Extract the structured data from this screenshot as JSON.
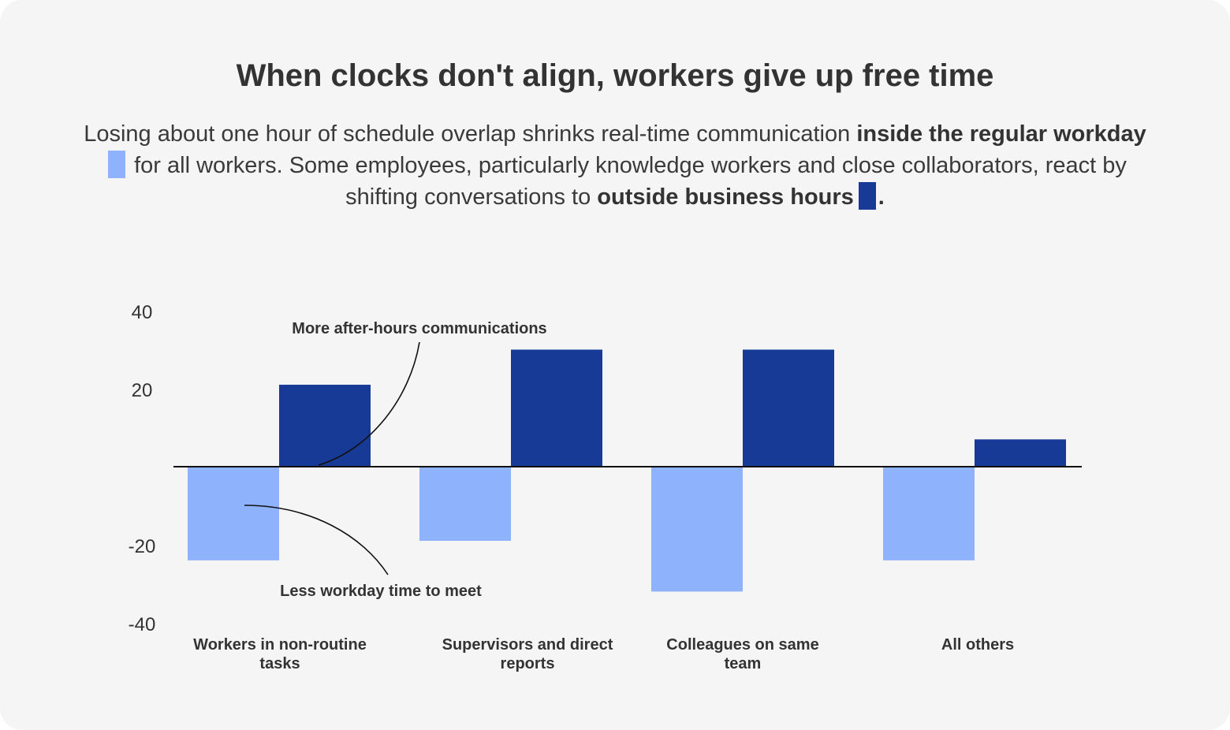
{
  "title": "When clocks don't align, workers give up free time",
  "subtitle": {
    "part1": "Losing about one hour of schedule overlap shrinks real-time communication ",
    "bold1": "inside the regular workday",
    "part2": " for all workers. Some employees, particularly knowledge workers and close collaborators, react by shifting conversations to ",
    "bold2": "outside business hours",
    "part3": "."
  },
  "colors": {
    "workday": "#8fb2fc",
    "after_hours": "#163a96",
    "text": "#333333",
    "background": "#f5f5f5"
  },
  "chart_data": {
    "type": "bar",
    "categories": [
      [
        "Workers in non-routine",
        "tasks"
      ],
      [
        "Supervisors and direct",
        "reports"
      ],
      [
        "Colleagues on same",
        "team"
      ],
      [
        "All others"
      ]
    ],
    "series": [
      {
        "key": "workday",
        "values": [
          -24,
          -19,
          -32,
          -24
        ]
      },
      {
        "key": "after_hours",
        "values": [
          21,
          30,
          30,
          7
        ]
      }
    ],
    "yticks": [
      40,
      20,
      -20,
      -40
    ],
    "ylim": [
      -40,
      40
    ],
    "annotations": {
      "after_hours": "More after-hours communications",
      "workday": "Less workday time to meet"
    }
  }
}
